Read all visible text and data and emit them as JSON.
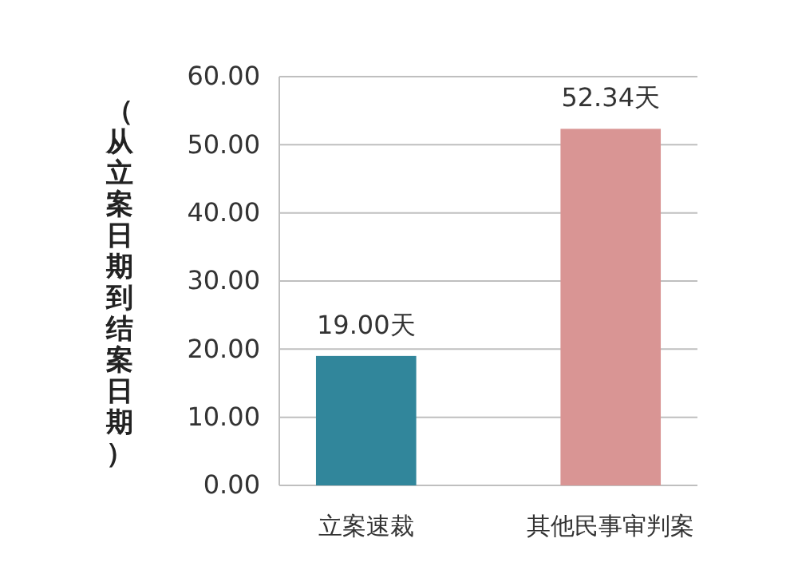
{
  "chart_data": {
    "type": "bar",
    "ylabel": "（从立案日期到结案日期）",
    "categories": [
      "立案速裁",
      "其他民事审判案"
    ],
    "values": [
      19.0,
      52.34
    ],
    "colors": [
      "#31869b",
      "#d99594"
    ],
    "value_labels": [
      "19.00天",
      "52.34天"
    ],
    "ylim": [
      0,
      60
    ],
    "yticks": [
      {
        "value": 0,
        "label": "0.00"
      },
      {
        "value": 10,
        "label": "10.00"
      },
      {
        "value": 20,
        "label": "20.00"
      },
      {
        "value": 30,
        "label": "30.00"
      },
      {
        "value": 40,
        "label": "40.00"
      },
      {
        "value": 50,
        "label": "50.00"
      },
      {
        "value": 60,
        "label": "60.00"
      }
    ],
    "grid": "y"
  }
}
